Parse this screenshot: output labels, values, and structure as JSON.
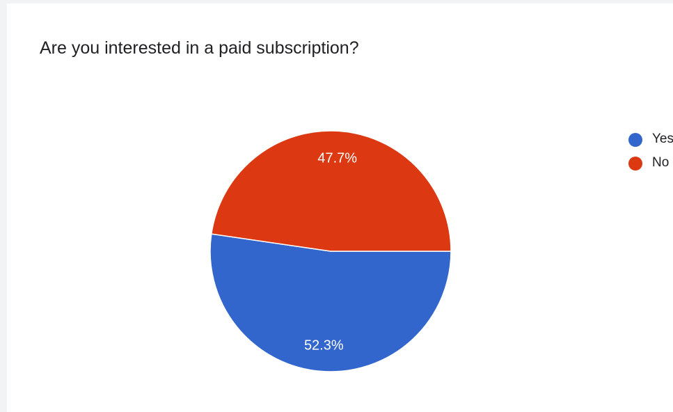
{
  "title": "Are you interested in a paid subscription?",
  "colors": {
    "yes": "#3366cc",
    "no": "#dc3912",
    "background": "#ffffff"
  },
  "chart_data": {
    "type": "pie",
    "title": "Are you interested in a paid subscription?",
    "categories": [
      "Yes",
      "No"
    ],
    "values": [
      52.3,
      47.7
    ],
    "labels": [
      "52.3%",
      "47.7%"
    ],
    "colors": [
      "#3366cc",
      "#dc3912"
    ],
    "legend_position": "right",
    "legend": [
      "Yes",
      "No"
    ]
  }
}
